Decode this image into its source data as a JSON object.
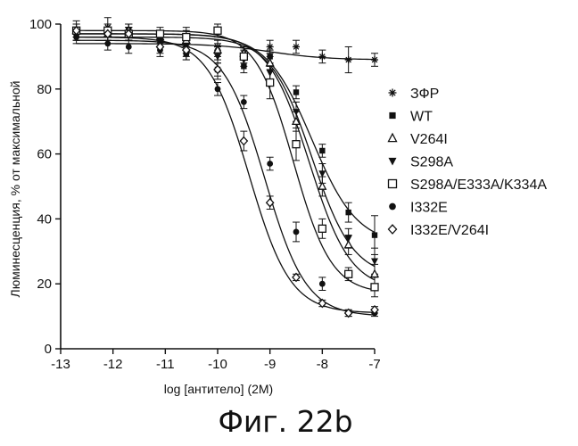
{
  "chart_data": {
    "type": "scatter",
    "caption": "Фиг. 22b",
    "xlabel": "log [антитело] (2M)",
    "ylabel": "Люминесценция, % от максимальной",
    "xlim": [
      -13,
      -7
    ],
    "ylim": [
      0,
      100
    ],
    "xticks": [
      -13,
      -12,
      -11,
      -10,
      -9,
      -8,
      -7
    ],
    "yticks": [
      0,
      20,
      40,
      60,
      80,
      100
    ],
    "legend_position": "right",
    "series": [
      {
        "name": "ЗФР",
        "marker": "asterisk",
        "x": [
          -12.7,
          -12.1,
          -11.7,
          -11.1,
          -10.6,
          -10.0,
          -9.5,
          -9.0,
          -8.5,
          -8.0,
          -7.5,
          -7.0
        ],
        "y": [
          98,
          99,
          98,
          95,
          96,
          93,
          91,
          93,
          93,
          90,
          89,
          89
        ],
        "err": [
          3,
          3,
          2,
          2,
          2,
          2,
          2,
          2,
          2,
          2,
          4,
          2
        ],
        "fit": {
          "top": 94,
          "bottom": 89,
          "ec50": -9.0,
          "hill": 0.8
        }
      },
      {
        "name": "WT",
        "marker": "filled-square",
        "x": [
          -12.7,
          -12.1,
          -11.7,
          -11.1,
          -10.6,
          -10.0,
          -9.5,
          -9.0,
          -8.5,
          -8.0,
          -7.5,
          -7.0
        ],
        "y": [
          97,
          98,
          98,
          95,
          91,
          86,
          87,
          90,
          79,
          61,
          42,
          35
        ],
        "err": [
          2,
          2,
          2,
          2,
          2,
          2,
          2,
          2,
          2,
          2,
          3,
          6
        ],
        "fit": {
          "top": 97,
          "bottom": 32,
          "ec50": -8.2,
          "hill": 1.0
        }
      },
      {
        "name": "V264I",
        "marker": "open-triangle",
        "x": [
          -12.7,
          -12.1,
          -11.7,
          -11.1,
          -10.6,
          -10.0,
          -9.5,
          -9.0,
          -8.5,
          -8.0,
          -7.5,
          -7.0
        ],
        "y": [
          98,
          97,
          98,
          96,
          95,
          92,
          91,
          88,
          70,
          50,
          32,
          23
        ],
        "err": [
          2,
          2,
          2,
          2,
          2,
          2,
          2,
          2,
          3,
          3,
          3,
          3
        ],
        "fit": {
          "top": 97,
          "bottom": 18,
          "ec50": -8.25,
          "hill": 1.1
        }
      },
      {
        "name": "S298A",
        "marker": "filled-triangle-down",
        "x": [
          -12.7,
          -12.1,
          -11.7,
          -11.1,
          -10.6,
          -10.0,
          -9.5,
          -9.0,
          -8.5,
          -8.0,
          -7.5,
          -7.0
        ],
        "y": [
          97,
          98,
          97,
          95,
          93,
          90,
          89,
          85,
          73,
          54,
          34,
          27
        ],
        "err": [
          2,
          2,
          2,
          2,
          2,
          2,
          2,
          2,
          3,
          3,
          3,
          4
        ],
        "fit": {
          "top": 96,
          "bottom": 22,
          "ec50": -8.2,
          "hill": 1.1
        }
      },
      {
        "name": "S298A/E333A/K334A",
        "marker": "open-square",
        "x": [
          -12.7,
          -12.1,
          -11.7,
          -11.1,
          -10.6,
          -10.0,
          -9.5,
          -9.0,
          -8.5,
          -8.0,
          -7.5,
          -7.0
        ],
        "y": [
          98,
          98,
          97,
          97,
          96,
          98,
          90,
          82,
          63,
          37,
          23,
          19
        ],
        "err": [
          2,
          2,
          2,
          2,
          3,
          2,
          2,
          5,
          5,
          3,
          2,
          3
        ],
        "fit": {
          "top": 98,
          "bottom": 17,
          "ec50": -8.55,
          "hill": 1.2
        }
      },
      {
        "name": "I332E",
        "marker": "filled-circle",
        "x": [
          -12.7,
          -12.1,
          -11.7,
          -11.1,
          -10.6,
          -10.0,
          -9.5,
          -9.0,
          -8.5,
          -8.0,
          -7.5,
          -7.0
        ],
        "y": [
          96,
          94,
          93,
          92,
          91,
          80,
          76,
          57,
          36,
          20,
          11,
          11
        ],
        "err": [
          2,
          2,
          2,
          2,
          2,
          2,
          2,
          2,
          3,
          2,
          1,
          1
        ],
        "fit": {
          "top": 95,
          "bottom": 10,
          "ec50": -9.1,
          "hill": 1.1
        }
      },
      {
        "name": "I332E/V264I",
        "marker": "open-diamond",
        "x": [
          -12.7,
          -12.1,
          -11.7,
          -11.1,
          -10.6,
          -10.0,
          -9.5,
          -9.0,
          -8.5,
          -8.0,
          -7.5,
          -7.0
        ],
        "y": [
          98,
          97,
          97,
          93,
          92,
          86,
          64,
          45,
          22,
          14,
          11,
          12
        ],
        "err": [
          2,
          2,
          2,
          2,
          2,
          3,
          3,
          2,
          1,
          1,
          1,
          1
        ],
        "fit": {
          "top": 96,
          "bottom": 11,
          "ec50": -9.4,
          "hill": 1.1
        }
      }
    ]
  }
}
